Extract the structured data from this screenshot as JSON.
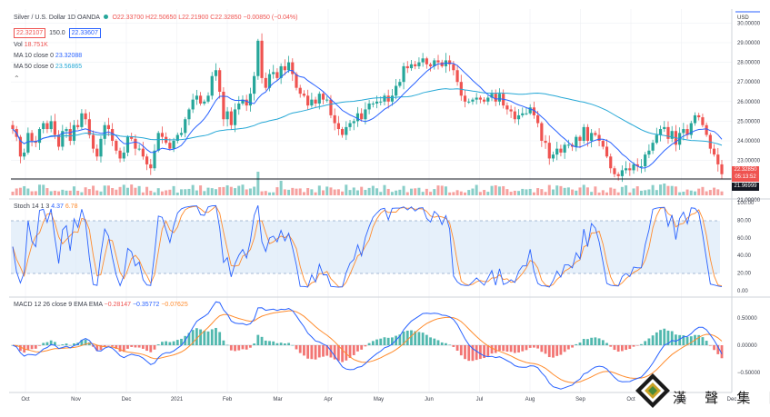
{
  "header": {
    "symbol": "Silver / U.S. Dollar",
    "interval": "1D",
    "exchange": "OANDA",
    "ohlc": "O22.33700 H22.50650 L22.21900 C22.32850 −0.00850 (−0.04%)",
    "sell_price": "22.32107",
    "spread": "150.0",
    "buy_price": "22.33607",
    "status_color": "#26a69a"
  },
  "indicators": {
    "vol_label": "Vol",
    "vol_value": "18.751K",
    "ma10_label": "MA 10 close 0",
    "ma10_value": "23.32088",
    "ma50_label": "MA 50 close 0",
    "ma50_value": "23.56865",
    "stoch_label": "Stoch 14 1 3",
    "stoch_k": "4.37",
    "stoch_d": "6.78",
    "macd_label": "MACD 12 26 close 9 EMA EMA",
    "macd_hist": "−0.28147",
    "macd_line": "−0.35772",
    "macd_signal": "−0.07625"
  },
  "price_axis": {
    "currency": "USD",
    "labels": [
      "30.00000",
      "29.00000",
      "28.00000",
      "27.00000",
      "26.00000",
      "25.00000",
      "24.00000",
      "23.00000",
      "21.00000"
    ],
    "last_price": "22.32850",
    "countdown": "05:13:52",
    "line_value": "21.96999"
  },
  "stoch_axis": [
    "100.00",
    "80.00",
    "60.00",
    "40.00",
    "20.00",
    "0.00"
  ],
  "macd_axis": [
    "0.50000",
    "0.00000",
    "−0.50000"
  ],
  "time_axis": [
    "Oct",
    "Nov",
    "Dec",
    "2021",
    "Feb",
    "Mar",
    "Apr",
    "May",
    "Jun",
    "Jul",
    "Aug",
    "Sep",
    "Oct",
    "Nov",
    "Dec"
  ],
  "watermark": "漢 聲 集 團",
  "colors": {
    "up": "#26a69a",
    "down": "#ef5350",
    "ma10": "#2962ff",
    "ma50": "#26a8d6",
    "stoch_k": "#2962ff",
    "stoch_d": "#ff8c2e",
    "band": "#dbeaf8"
  },
  "chart_data": {
    "type": "candlestick",
    "title": "Silver / U.S. Dollar, 1D, OANDA",
    "y_range": [
      21.0,
      30.0
    ],
    "close": [
      24.6,
      24.2,
      23.2,
      23.4,
      24.4,
      24.0,
      23.9,
      24.6,
      24.9,
      24.6,
      25.0,
      24.3,
      23.7,
      24.5,
      24.6,
      24.0,
      24.8,
      24.7,
      25.4,
      25.1,
      24.3,
      23.6,
      23.2,
      24.1,
      24.8,
      24.6,
      24.0,
      23.5,
      23.1,
      23.4,
      24.2,
      24.1,
      23.6,
      23.6,
      23.2,
      22.8,
      22.6,
      23.5,
      24.4,
      24.2,
      23.9,
      23.6,
      24.0,
      24.3,
      24.4,
      25.1,
      25.6,
      26.1,
      26.3,
      25.9,
      26.0,
      26.3,
      27.3,
      27.6,
      26.5,
      25.1,
      25.5,
      24.8,
      25.6,
      25.9,
      26.1,
      25.8,
      26.4,
      27.3,
      29.1,
      27.2,
      26.7,
      27.4,
      27.5,
      27.2,
      27.8,
      27.6,
      28.0,
      27.4,
      26.7,
      26.4,
      26.3,
      25.8,
      26.1,
      25.9,
      26.4,
      26.1,
      26.1,
      25.3,
      24.9,
      24.6,
      24.3,
      24.7,
      24.9,
      25.0,
      25.4,
      25.1,
      25.6,
      25.9,
      25.9,
      26.0,
      26.0,
      26.3,
      26.0,
      26.3,
      26.8,
      27.0,
      27.8,
      27.7,
      27.9,
      27.8,
      28.0,
      28.2,
      27.9,
      27.8,
      28.1,
      28.0,
      27.8,
      28.1,
      27.9,
      27.6,
      27.0,
      26.3,
      26.0,
      26.0,
      26.1,
      26.2,
      26.1,
      26.0,
      26.2,
      26.4,
      26.0,
      26.4,
      25.8,
      25.6,
      25.5,
      25.1,
      25.3,
      25.4,
      25.4,
      25.7,
      25.3,
      24.9,
      24.0,
      23.9,
      23.1,
      23.3,
      23.6,
      23.4,
      23.8,
      23.8,
      23.7,
      24.2,
      24.0,
      24.7,
      24.0,
      24.4,
      24.3,
      24.0,
      23.7,
      23.2,
      22.6,
      22.3,
      22.2,
      22.5,
      22.6,
      22.5,
      22.8,
      22.7,
      22.7,
      23.3,
      23.5,
      23.9,
      24.3,
      24.6,
      24.7,
      24.1,
      24.5,
      23.8,
      24.4,
      24.6,
      24.3,
      24.9,
      25.3,
      25.2,
      24.8,
      24.3,
      23.6,
      23.3,
      22.8,
      22.3
    ]
  }
}
